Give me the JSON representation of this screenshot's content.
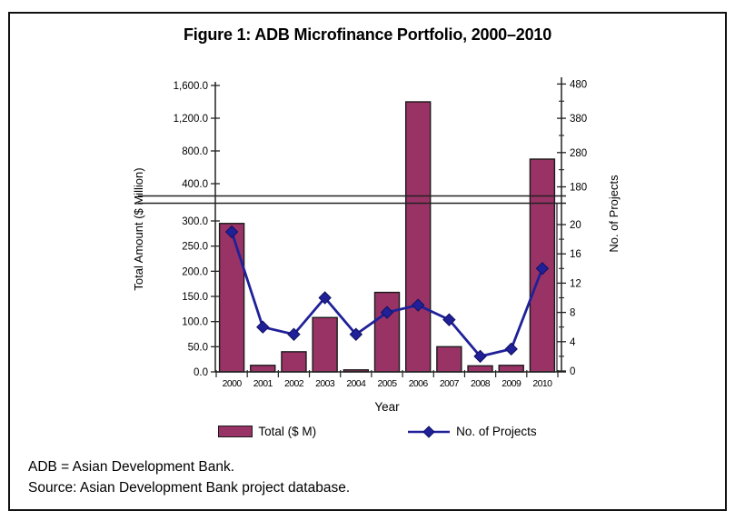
{
  "figure": {
    "title": "Figure 1: ADB Microfinance Portfolio, 2000–2010",
    "footnotes": [
      "ADB = Asian Development Bank.",
      "Source: Asian Development Bank project database."
    ]
  },
  "legend": {
    "bar_label": "Total ($ M)",
    "line_label": "No. of Projects"
  },
  "colors": {
    "bar_fill": "#993366",
    "bar_stroke": "#1a1a1a",
    "line": "#202099",
    "axis": "#222222"
  },
  "chart_data": {
    "type": "bar+line",
    "title": "Figure 1: ADB Microfinance Portfolio, 2000–2010",
    "categories": [
      "2000",
      "2001",
      "2002",
      "2003",
      "2004",
      "2005",
      "2006",
      "2007",
      "2008",
      "2009",
      "2010"
    ],
    "series": [
      {
        "name": "Total ($ M)",
        "type": "bar",
        "y_axis": "left",
        "color": "#993366",
        "values": [
          295,
          13,
          40,
          108,
          4,
          158,
          1400,
          50,
          12,
          13,
          700
        ]
      },
      {
        "name": "No. of Projects",
        "type": "line",
        "y_axis": "right",
        "color": "#202099",
        "values": [
          19,
          6,
          5,
          10,
          5,
          8,
          9,
          7,
          2,
          3,
          14
        ]
      }
    ],
    "xlabel": "Year",
    "x_tick_labels": [
      "2000",
      "2001",
      "2002",
      "2003",
      "2004",
      "2005",
      "2006",
      "2007",
      "2008",
      "2009",
      "2010"
    ],
    "axis_break": true,
    "grid": false,
    "legend_position": "bottom",
    "left_axis": {
      "label": "Total Amount ($ Million)",
      "lower_range": [
        0,
        300
      ],
      "upper_range": [
        400,
        1600
      ],
      "lower_ticks": [
        {
          "label": "300.0",
          "value": 300
        },
        {
          "label": "250.0",
          "value": 250
        },
        {
          "label": "200.0",
          "value": 200
        },
        {
          "label": "150.0",
          "value": 150
        },
        {
          "label": "100.0",
          "value": 100
        },
        {
          "label": "50.0",
          "value": 50
        },
        {
          "label": "0.0",
          "value": 0
        }
      ],
      "upper_ticks": [
        {
          "label": "1,600.0",
          "value": 1600
        },
        {
          "label": "1,200.0",
          "value": 1200
        },
        {
          "label": "800.0",
          "value": 800
        },
        {
          "label": "400.0",
          "value": 400
        }
      ]
    },
    "right_axis": {
      "label": "No. of Projects",
      "lower_range": [
        0,
        20
      ],
      "upper_range": [
        180,
        480
      ],
      "lower_ticks": [
        {
          "label": "20",
          "value": 20
        },
        {
          "label": "16",
          "value": 16
        },
        {
          "label": "12",
          "value": 12
        },
        {
          "label": "8",
          "value": 8
        },
        {
          "label": "4",
          "value": 4
        },
        {
          "label": "0",
          "value": 0
        }
      ],
      "lower_minor_ticks": [
        2,
        6,
        10,
        14,
        18
      ],
      "upper_ticks": [
        {
          "label": "480",
          "value": 480
        },
        {
          "label": "380",
          "value": 380
        },
        {
          "label": "280",
          "value": 280
        },
        {
          "label": "180",
          "value": 180
        }
      ],
      "upper_minor_ticks": [
        230,
        330,
        430
      ]
    }
  }
}
